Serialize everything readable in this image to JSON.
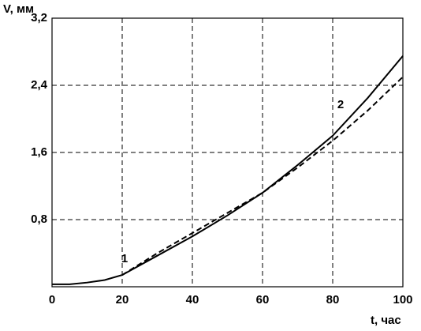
{
  "chart_data": {
    "type": "line",
    "y_label": "V, мм",
    "x_label": "t, час",
    "x": [
      0,
      5,
      10,
      15,
      20,
      30,
      40,
      50,
      60,
      70,
      80,
      90,
      100
    ],
    "series": [
      {
        "name": "1",
        "color": "#000000",
        "dash": false,
        "values": [
          0.03,
          0.03,
          0.05,
          0.08,
          0.14,
          0.37,
          0.6,
          0.85,
          1.12,
          1.45,
          1.8,
          2.25,
          2.75
        ]
      },
      {
        "name": "2",
        "color": "#000000",
        "dash": true,
        "values": [
          null,
          null,
          null,
          null,
          0.14,
          0.4,
          0.64,
          0.88,
          1.12,
          1.42,
          1.74,
          2.1,
          2.5
        ]
      }
    ],
    "xlim": [
      0,
      100
    ],
    "xticks": [
      0,
      20,
      40,
      60,
      80,
      100
    ],
    "ylim": [
      0,
      3.2
    ],
    "yticks": [
      {
        "value": 0.8,
        "label": "0,8"
      },
      {
        "value": 1.6,
        "label": "1,6"
      },
      {
        "value": 2.4,
        "label": "2,4"
      },
      {
        "value": 3.2,
        "label": "3,2"
      }
    ],
    "grid": true
  }
}
